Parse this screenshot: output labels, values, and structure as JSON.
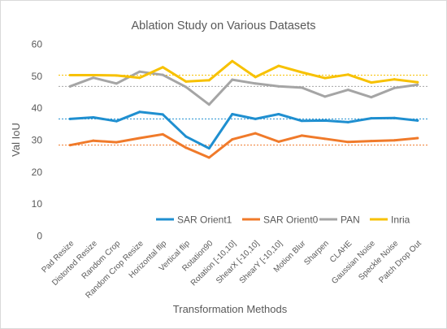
{
  "chart_data": {
    "type": "line",
    "title": "Ablation Study on Various Datasets",
    "xlabel": "Transformation Methods",
    "ylabel": "Val IoU",
    "ylim": [
      0,
      60
    ],
    "yticks": [
      0,
      10,
      20,
      30,
      40,
      50,
      60
    ],
    "grid": false,
    "legend_position": "bottom-inside",
    "categories": [
      "Pad Resize",
      "Distorted Resize",
      "Random Crop",
      "Random Crop Resize",
      "Horizontal flip",
      "Vertical flip",
      "Rotation90",
      "Rotation [-10,10]",
      "ShearX [-10,10]",
      "ShearY [-10,10]",
      "Motion Blur",
      "Sharpen",
      "CLAHE",
      "Gaussian Noise",
      "Speckle Noise",
      "Patch Drop Out"
    ],
    "series": [
      {
        "name": "SAR Orient1",
        "color": "#1f8fd0",
        "values": [
          36.5,
          37.0,
          35.8,
          38.7,
          37.9,
          31.0,
          27.3,
          38.0,
          36.5,
          38.0,
          35.9,
          36.0,
          35.5,
          36.7,
          36.8,
          36.0
        ]
      },
      {
        "name": "SAR Orient0",
        "color": "#f07a2a",
        "values": [
          28.3,
          29.7,
          29.2,
          30.5,
          31.7,
          27.5,
          24.4,
          30.1,
          32.0,
          29.4,
          31.3,
          30.3,
          29.3,
          29.6,
          29.8,
          30.5
        ]
      },
      {
        "name": "PAN",
        "color": "#a5a5a5",
        "values": [
          46.7,
          49.4,
          47.6,
          51.3,
          50.3,
          46.5,
          41.0,
          48.8,
          47.6,
          46.7,
          46.3,
          43.5,
          45.6,
          43.3,
          46.2,
          47.2
        ]
      },
      {
        "name": "Inria",
        "color": "#f7c100",
        "values": [
          50.2,
          50.2,
          50.1,
          49.4,
          52.7,
          48.2,
          48.6,
          54.6,
          49.6,
          53.1,
          51.1,
          49.3,
          50.4,
          47.9,
          48.9,
          48.0
        ]
      }
    ],
    "reference_lines": [
      {
        "value": 50.2,
        "color": "#f7c100"
      },
      {
        "value": 46.7,
        "color": "#a5a5a5"
      },
      {
        "value": 36.5,
        "color": "#1f8fd0"
      },
      {
        "value": 28.3,
        "color": "#f07a2a"
      }
    ]
  }
}
